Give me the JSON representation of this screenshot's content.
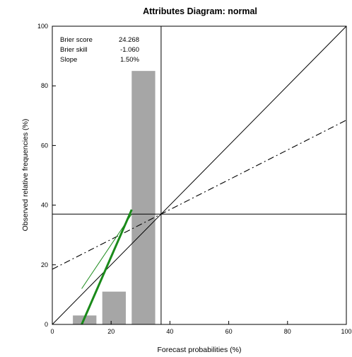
{
  "chart_data": {
    "type": "bar",
    "title": "Attributes Diagram: normal",
    "xlabel": "Forecast probabilities (%)",
    "ylabel": "Observed relative frequencies (%)",
    "xlim": [
      0,
      100
    ],
    "ylim": [
      0,
      100
    ],
    "xticks": [
      "0",
      "20",
      "40",
      "60",
      "80",
      "100"
    ],
    "yticks": [
      "0",
      "20",
      "40",
      "60",
      "80",
      "100"
    ],
    "bars": [
      {
        "x_from": 7,
        "x_to": 15,
        "value": 3
      },
      {
        "x_from": 17,
        "x_to": 25,
        "value": 11
      },
      {
        "x_from": 27,
        "x_to": 35,
        "value": 85
      }
    ],
    "climatology": 37,
    "no_skill_line": {
      "points": [
        [
          0,
          18.5
        ],
        [
          100,
          68.5
        ]
      ]
    },
    "perfect_reliability": {
      "points": [
        [
          0,
          0
        ],
        [
          100,
          100
        ]
      ]
    },
    "reliability_fit": {
      "points": [
        [
          10,
          0
        ],
        [
          27,
          38.5
        ]
      ]
    },
    "reliability_thin": {
      "points": [
        [
          10,
          12
        ],
        [
          27,
          37
        ]
      ]
    },
    "stats": [
      {
        "label": "Brier score",
        "value": "24.268"
      },
      {
        "label": "Brier skill",
        "value": "-1.060"
      },
      {
        "label": "Slope",
        "value": "1.50%"
      }
    ],
    "colors": {
      "bar": "#a6a6a6",
      "fit": "#1a8a1a",
      "thin": "#1a8a1a",
      "axis": "#000000"
    }
  }
}
